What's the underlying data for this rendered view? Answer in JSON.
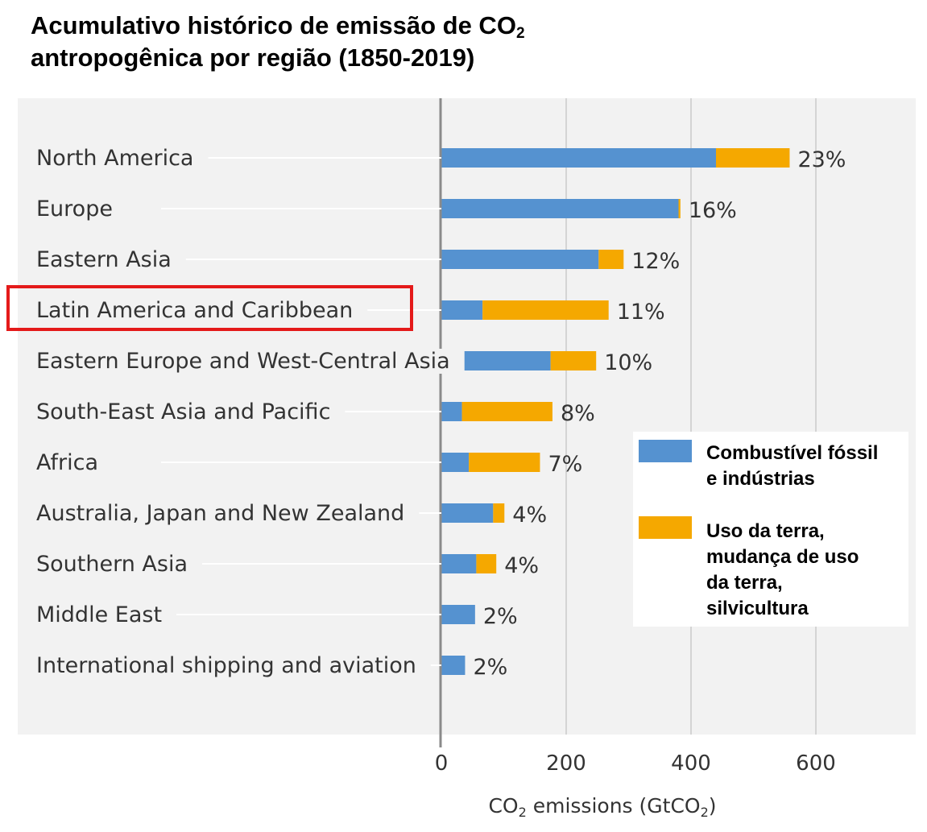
{
  "title": {
    "line1_prefix": "Acumulativo histórico de emissão de CO",
    "line1_sub": "2",
    "line2": "antropogênica por região (1850-2019)"
  },
  "colors": {
    "fossil": "#5592d0",
    "landuse": "#f5a800",
    "plot_bg": "#f2f2f2",
    "highlight": "#e41a1a"
  },
  "highlight_category": "Latin America and Caribbean",
  "chart_data": {
    "type": "bar",
    "orientation": "horizontal",
    "stacked": true,
    "categories": [
      "North America",
      "Europe",
      "Eastern Asia",
      "Latin America and Caribbean",
      "Eastern Europe and West-Central Asia",
      "South-East Asia and Pacific",
      "Africa",
      "Australia, Japan and New Zealand",
      "Southern Asia",
      "Middle East",
      "International shipping and aviation"
    ],
    "series": [
      {
        "name_lines": [
          "Combustível fóssil",
          "e indústrias"
        ],
        "values": [
          440,
          380,
          252,
          66,
          175,
          33,
          44,
          83,
          56,
          54,
          38
        ]
      },
      {
        "name_lines": [
          "Uso da terra,",
          "mudança de uso",
          "da terra,",
          "silvicultura"
        ],
        "values": [
          118,
          3,
          40,
          202,
          73,
          145,
          114,
          18,
          32,
          0,
          0
        ]
      }
    ],
    "percent_labels": [
      "23%",
      "16%",
      "12%",
      "11%",
      "10%",
      "8%",
      "7%",
      "4%",
      "4%",
      "2%",
      "2%"
    ],
    "x_ticks": [
      0,
      200,
      400,
      600
    ],
    "xlim": [
      0,
      760
    ],
    "xlabel": {
      "prefix": "CO",
      "sub1": "2",
      "mid": " emissions (GtCO",
      "sub2": "2",
      "suffix": ")"
    },
    "grid": true,
    "legend_position": "right"
  }
}
